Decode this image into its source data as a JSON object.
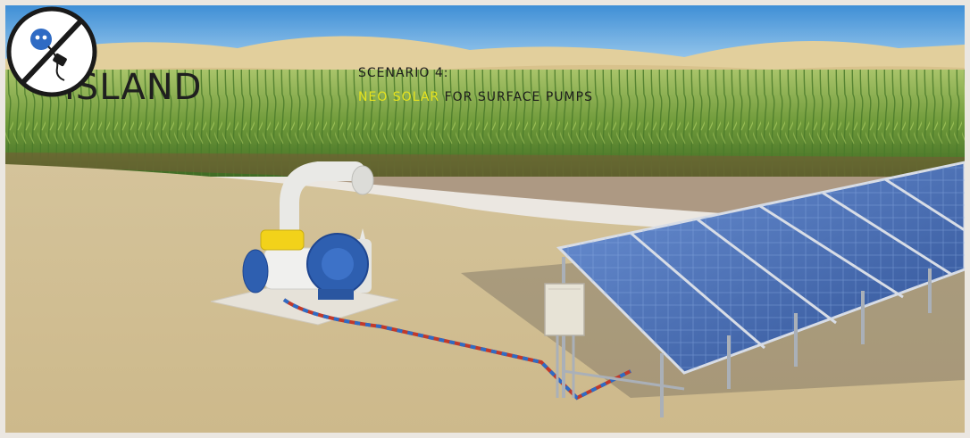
{
  "brand": {
    "word": "ISLAND",
    "badge_icon": "no-grid-plug-icon"
  },
  "scenario": {
    "label": "SCENARIO 4:",
    "product_highlight": "NEO SOLAR",
    "product_rest": " FOR SURFACE PUMPS"
  },
  "colors": {
    "sky": "#7ab8e6",
    "sand": "#d8c8a0",
    "crop": "#6f9a3a",
    "panel": "#3a5fa8",
    "pump": "#2e5fb0",
    "pump_cap": "#f2d21a",
    "highlight": "#e6e31e",
    "cable_red": "#c0392b",
    "cable_blue": "#2f6bc4"
  },
  "scene": {
    "objects": [
      "surface-pump",
      "solar-panel-array",
      "control-box",
      "crop-field",
      "desert-dunes"
    ]
  }
}
